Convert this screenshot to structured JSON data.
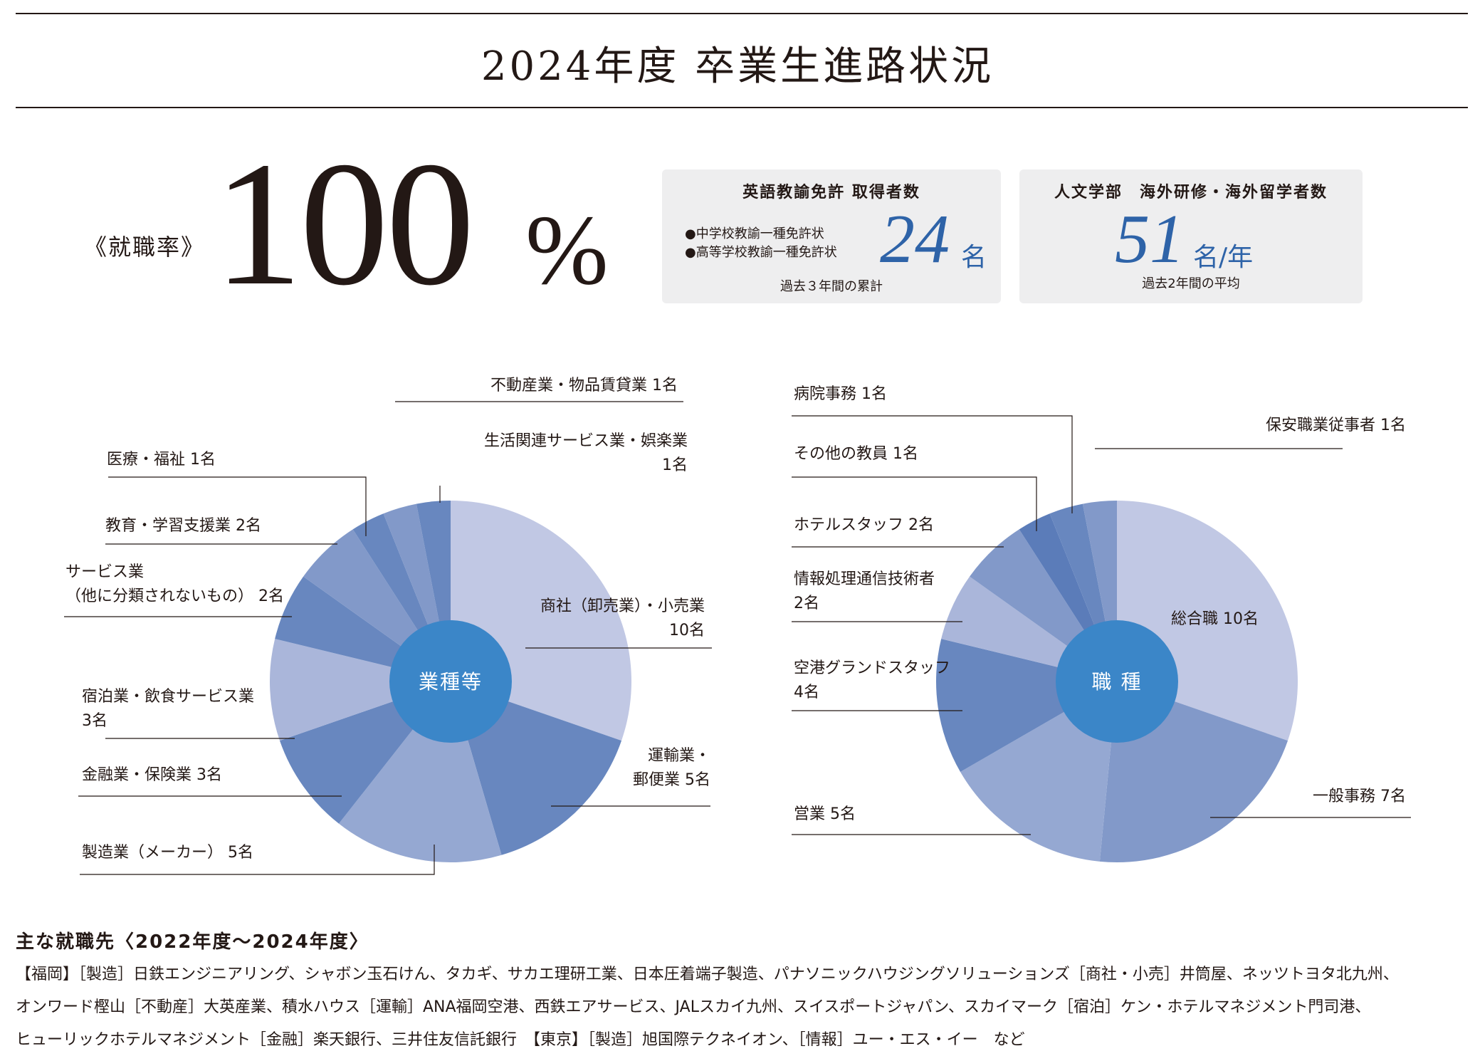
{
  "header": {
    "title": "2024年度 卒業生進路状況"
  },
  "rate": {
    "label": "《就職率》",
    "value": "100",
    "unit": "%"
  },
  "box_license": {
    "title": "英語教諭免許 取得者数",
    "items": [
      "●中学校教諭一種免許状",
      "●高等学校教諭一種免許状"
    ],
    "value": "24",
    "unit": "名",
    "footnote": "過去３年間の累計"
  },
  "box_abroad": {
    "title": "人文学部　海外研修・海外留学者数",
    "value": "51",
    "unit": "名/年",
    "footnote": "過去2年間の平均"
  },
  "chart_data": [
    {
      "type": "pie",
      "center_label": "業種等",
      "categories": [
        "商社（卸売業）・小売業",
        "運輸業・郵便業",
        "製造業（メーカー）",
        "金融業・保険業",
        "宿泊業・飲食サービス業",
        "サービス業（他に分類されないもの）",
        "教育・学習支援業",
        "医療・福祉",
        "不動産業・物品賃貸業",
        "生活関連サービス業・娯楽業"
      ],
      "values": [
        10,
        5,
        5,
        3,
        3,
        2,
        2,
        1,
        1,
        1
      ],
      "labels": [
        [
          "商社（卸売業）・小売業",
          "10名"
        ],
        [
          "運輸業・",
          "郵便業 5名"
        ],
        [
          "製造業（メーカー） 5名"
        ],
        [
          "金融業・保険業 3名"
        ],
        [
          "宿泊業・飲食サービス業",
          "3名"
        ],
        [
          "サービス業",
          "（他に分類されないもの） 2名"
        ],
        [
          "教育・学習支援業 2名"
        ],
        [
          "医療・福祉 1名"
        ],
        [
          "不動産業・物品賃貸業 1名"
        ],
        [
          "生活関連サービス業・娯楽業",
          "1名"
        ]
      ],
      "colors": [
        "#c1c8e4",
        "#6887bf",
        "#95a8d2",
        "#6887bf",
        "#aab6da",
        "#6887bf",
        "#8299c9",
        "#6887bf",
        "#8299c9",
        "#6887bf"
      ]
    },
    {
      "type": "pie",
      "center_label": "職 種",
      "categories": [
        "総合職",
        "一般事務",
        "営業",
        "空港グランドスタッフ",
        "情報処理通信技術者",
        "ホテルスタッフ",
        "その他の教員",
        "病院事務",
        "保安職業従事者"
      ],
      "values": [
        10,
        7,
        5,
        4,
        2,
        2,
        1,
        1,
        1
      ],
      "labels": [
        [
          "総合職 10名"
        ],
        [
          "一般事務 7名"
        ],
        [
          "営業 5名"
        ],
        [
          "空港グランドスタッフ",
          "4名"
        ],
        [
          "情報処理通信技術者",
          "2名"
        ],
        [
          "ホテルスタッフ 2名"
        ],
        [
          "その他の教員 1名"
        ],
        [
          "病院事務 1名"
        ],
        [
          "保安職業従事者 1名"
        ]
      ],
      "colors": [
        "#c1c8e4",
        "#8299c9",
        "#95a8d2",
        "#6887bf",
        "#aab6da",
        "#8299c9",
        "#5b7cb9",
        "#6887bf",
        "#8299c9"
      ]
    }
  ],
  "colors": {
    "accent": "#2e63a8",
    "center": "#3b86c8"
  },
  "employers": {
    "title": "主な就職先〈2022年度〜2024年度〉",
    "lines": [
      "【福岡】［製造］日鉄エンジニアリング、シャボン玉石けん、タカギ、サカエ理研工業、日本圧着端子製造、パナソニックハウジングソリューションズ［商社・小売］井筒屋、ネッツトヨタ北九州、",
      "オンワード樫山［不動産］大英産業、積水ハウス［運輸］ANA福岡空港、西鉄エアサービス、JALスカイ九州、スイスポートジャパン、スカイマーク［宿泊］ケン・ホテルマネジメント門司港、",
      "ヒューリックホテルマネジメント［金融］楽天銀行、三井住友信託銀行　【東京】［製造］旭国際テクネイオン、［情報］ユー・エス・イー　など"
    ]
  }
}
